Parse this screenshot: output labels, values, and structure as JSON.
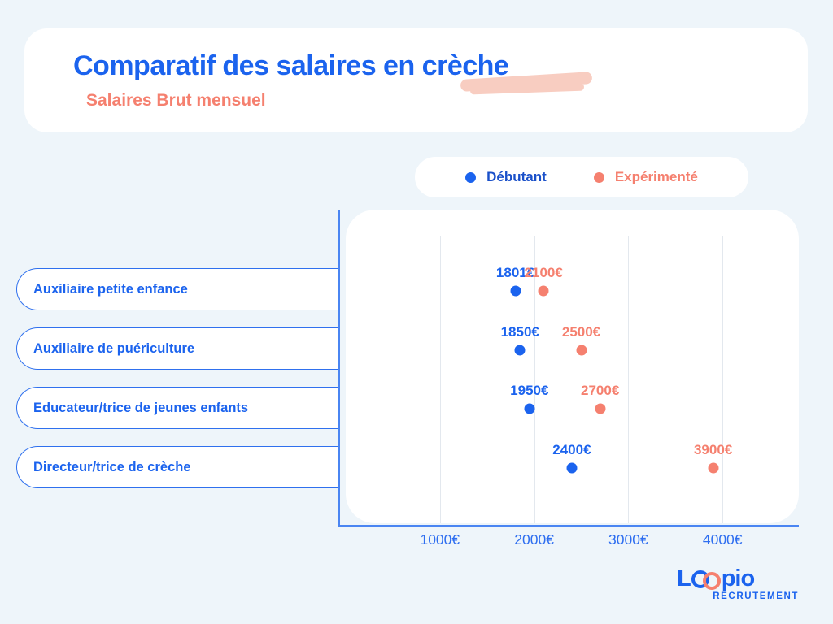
{
  "header": {
    "title": "Comparatif des salaires en crèche",
    "subtitle": "Salaires Brut mensuel"
  },
  "legend": [
    {
      "label": "Débutant",
      "color": "#1b63ee"
    },
    {
      "label": "Expérimenté",
      "color": "#f5806f"
    }
  ],
  "chart_data": {
    "type": "scatter",
    "title": "Comparatif des salaires en crèche",
    "subtitle": "Salaires Brut mensuel",
    "categories": [
      "Auxiliaire petite enfance",
      "Auxiliaire de puériculture",
      "Educateur/trice de jeunes enfants",
      "Directeur/trice de crèche"
    ],
    "series": [
      {
        "name": "Débutant",
        "color": "#1b63ee",
        "values": [
          1801,
          1850,
          1950,
          2400
        ],
        "labels": [
          "1801€",
          "1850€",
          "1950€",
          "2400€"
        ]
      },
      {
        "name": "Expérimenté",
        "color": "#f5806f",
        "values": [
          2100,
          2500,
          2700,
          3900
        ],
        "labels": [
          "2100€",
          "2500€",
          "2700€",
          "3900€"
        ]
      }
    ],
    "x_axis": {
      "min": 0,
      "max": 4810,
      "ticks": [
        1000,
        2000,
        3000,
        4000
      ],
      "tick_labels": [
        "1000€",
        "2000€",
        "3000€",
        "4000€"
      ],
      "unit": "€"
    },
    "grid": true,
    "legend_position": "top-right"
  },
  "footer": {
    "logo": {
      "text": "Loopio",
      "text_start": "L",
      "text_end": "pio",
      "subtitle": "RECRUTEMENT"
    }
  },
  "colors": {
    "background": "#eef5fa",
    "brand_blue": "#1b63ee",
    "coral": "#f5806f",
    "highlight": "#f8cdc1",
    "axis": "#4a85f2",
    "gridline": "#e3e8ee"
  }
}
